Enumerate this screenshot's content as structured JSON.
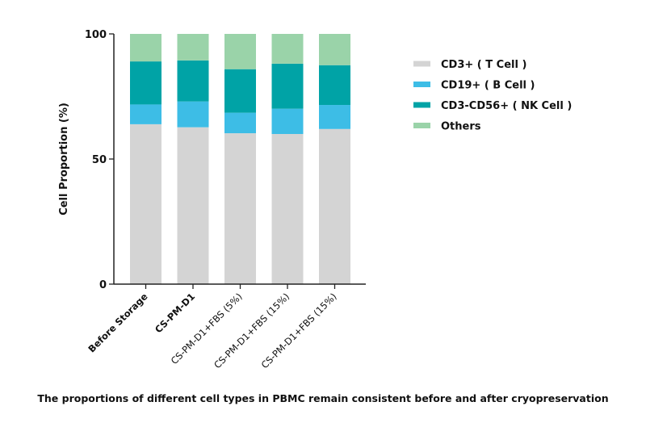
{
  "chart_data": {
    "type": "bar",
    "stacked": true,
    "ylabel": "Cell Proportion (%)",
    "ylim": [
      0,
      100
    ],
    "yticks": [
      "0",
      "50",
      "100"
    ],
    "grid": false,
    "legend_position": "right",
    "categories": [
      "Before Storage",
      "CS-PM-D1",
      "CS-PM-D1+FBS (5%)",
      "CS-PM-D1+FBS (15%)",
      "CS-PM-D1+FBS (15%)"
    ],
    "series": [
      {
        "name": "CD3+ ( T Cell )",
        "color": "#d4d4d4",
        "values": [
          63.9,
          62.7,
          60.3,
          60.0,
          62.0
        ]
      },
      {
        "name": "CD19+ ( B Cell )",
        "color": "#3dbde6",
        "values": [
          7.9,
          10.3,
          8.2,
          10.1,
          9.6
        ]
      },
      {
        "name": "CD3-CD56+ ( NK Cell )",
        "color": "#00a3a6",
        "values": [
          17.2,
          16.4,
          17.4,
          18.0,
          15.9
        ]
      },
      {
        "name": "Others",
        "color": "#9ad3a9",
        "values": [
          11.0,
          10.6,
          14.1,
          11.9,
          12.5
        ]
      }
    ]
  },
  "caption": "The proportions of different cell types in PBMC remain consistent before and after cryopreservation"
}
